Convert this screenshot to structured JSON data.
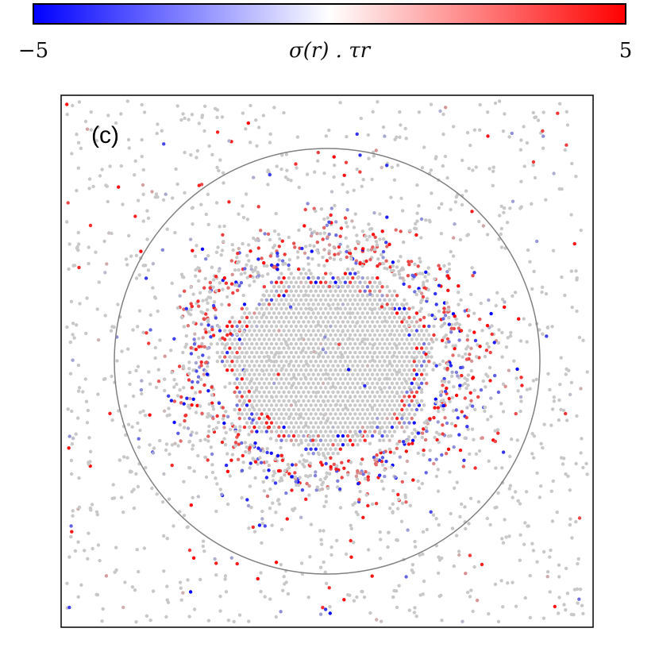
{
  "chart_data": {
    "type": "scatter",
    "panel_label": "(c)",
    "colorbar": {
      "min": -5,
      "max": 5,
      "min_label": "−5",
      "max_label": "5",
      "label": "σ(r) . τr",
      "colors": {
        "low": "#0000ff",
        "mid": "#ffffff",
        "high": "#ff0000"
      },
      "placement": "top"
    },
    "xlim": [
      -1,
      1
    ],
    "ylim": [
      -1,
      1
    ],
    "grid": false,
    "circle": {
      "cx": 0,
      "cy": 0,
      "r": 0.8
    },
    "dense_core": {
      "cx": 0,
      "cy": 0,
      "rx": 0.44,
      "ry": 0.38
    },
    "particle_color_neutral": "#c8c8c8",
    "note_values": "particle color encodes sigma(r).tau_r on [-5, 5]; neutral particles are near 0"
  }
}
